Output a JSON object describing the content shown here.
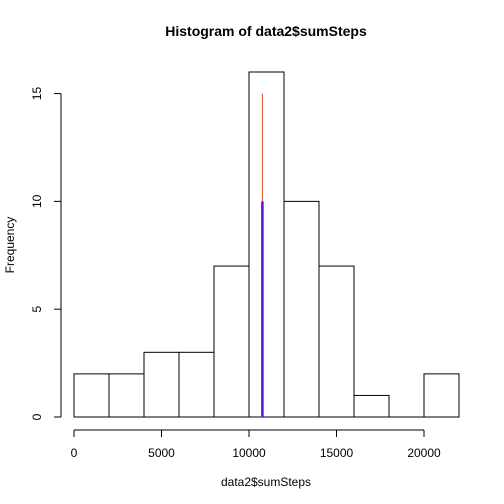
{
  "chart_data": {
    "type": "bar",
    "title": "Histogram of data2$sumSteps",
    "xlabel": "data2$sumSteps",
    "ylabel": "Frequency",
    "bins": [
      {
        "from": 0,
        "to": 2000,
        "count": 2
      },
      {
        "from": 2000,
        "to": 4000,
        "count": 2
      },
      {
        "from": 4000,
        "to": 6000,
        "count": 3
      },
      {
        "from": 6000,
        "to": 8000,
        "count": 3
      },
      {
        "from": 8000,
        "to": 10000,
        "count": 7
      },
      {
        "from": 10000,
        "to": 12000,
        "count": 16
      },
      {
        "from": 12000,
        "to": 14000,
        "count": 10
      },
      {
        "from": 14000,
        "to": 16000,
        "count": 7
      },
      {
        "from": 16000,
        "to": 18000,
        "count": 1
      },
      {
        "from": 18000,
        "to": 20000,
        "count": 0
      },
      {
        "from": 20000,
        "to": 22000,
        "count": 2
      }
    ],
    "xlim": [
      0,
      22000
    ],
    "ylim": [
      0,
      16
    ],
    "xticks": [
      0,
      5000,
      10000,
      15000,
      20000
    ],
    "yticks": [
      0,
      5,
      10,
      15
    ],
    "vlines": [
      {
        "x": 10766,
        "y0": 0,
        "y1": 15,
        "color": "#d9542c",
        "width": 1
      },
      {
        "x": 10766,
        "y0": 0,
        "y1": 10,
        "color": "#5a10d8",
        "width": 2.5
      }
    ],
    "grid": false,
    "legend": "none"
  }
}
